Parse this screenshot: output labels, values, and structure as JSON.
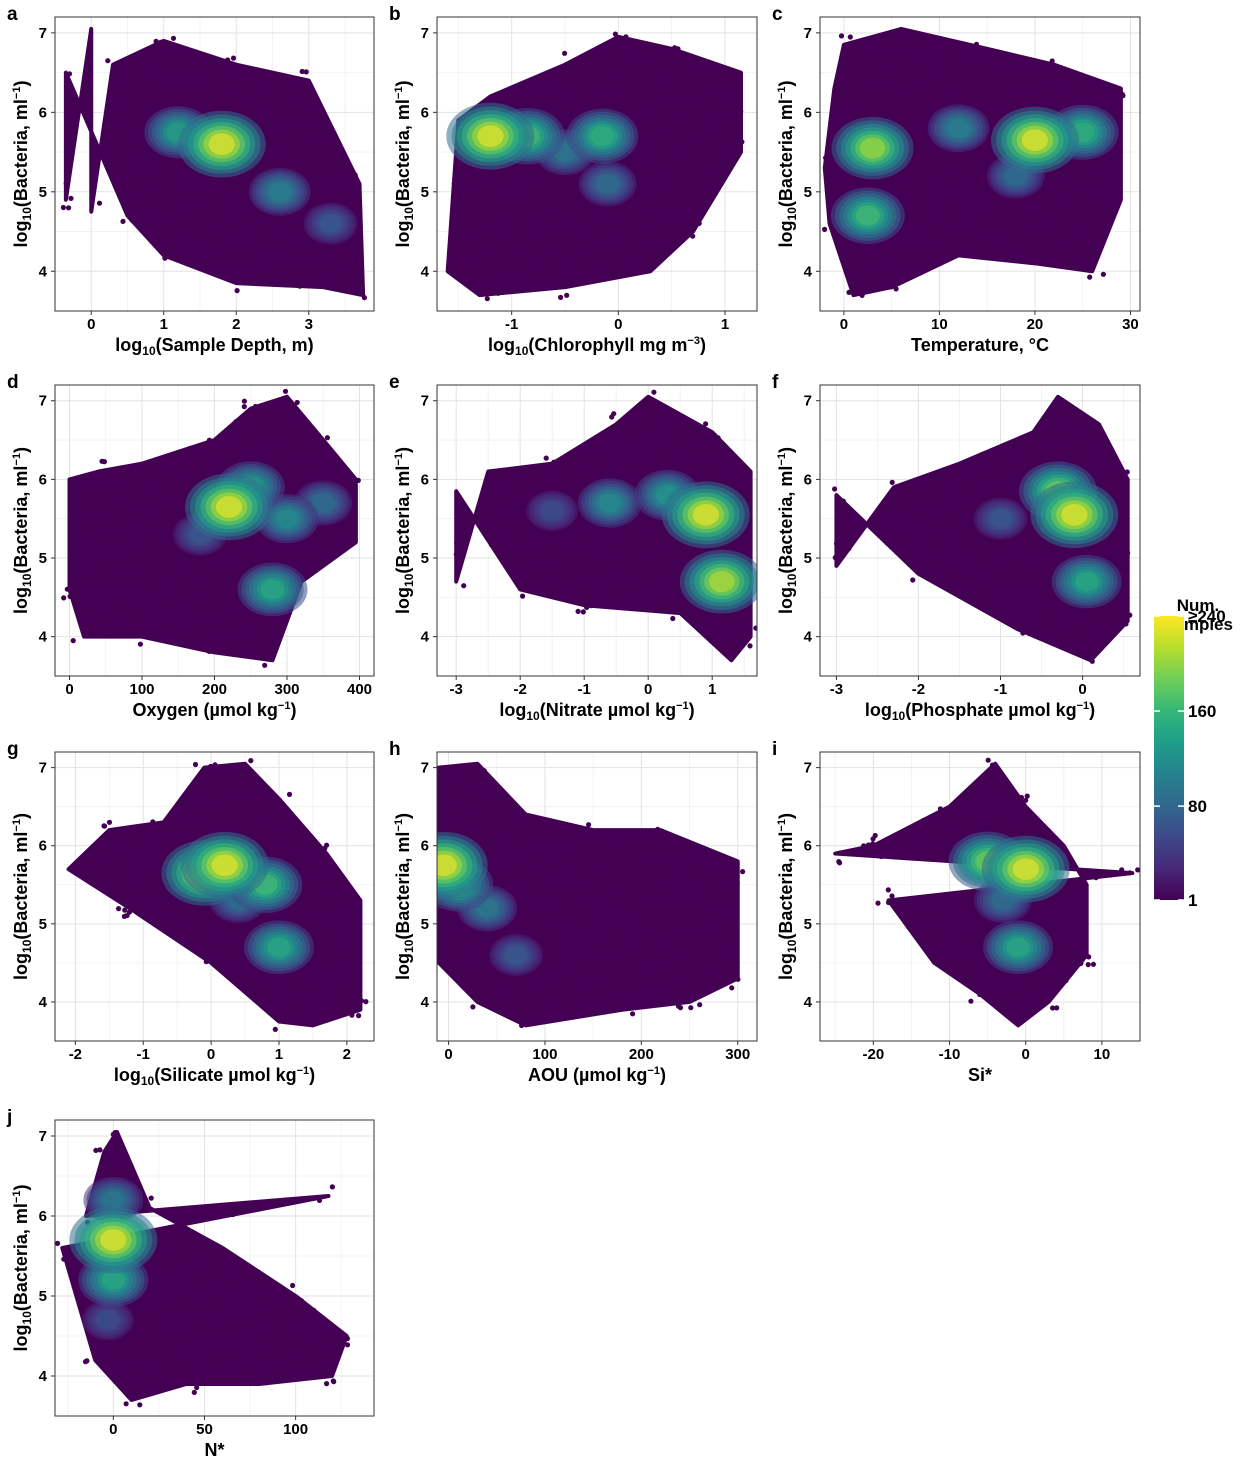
{
  "chart_data": [
    {
      "type": "scatter",
      "panel": "a",
      "title": "",
      "xlabel_prefix": "log",
      "xlabel_sub": "10",
      "xlabel_main": "(Sample Depth, m)",
      "xlabel_sup": "",
      "xlabel_tail": "",
      "ylabel": "log10(Bacteria, ml-1)",
      "xlim": [
        -0.5,
        3.9
      ],
      "ylim": [
        3.5,
        7.2
      ],
      "xticks": [
        0,
        1,
        2,
        3
      ],
      "xtick_labels": [
        "0",
        "1",
        "2",
        "3"
      ],
      "yticks": [
        4,
        5,
        6,
        7
      ],
      "ytick_labels": [
        "4",
        "5",
        "6",
        "7"
      ],
      "density_peaks": [
        {
          "x": 1.8,
          "y": 5.6,
          "level": 240
        },
        {
          "x": 1.2,
          "y": 5.75,
          "level": 140
        },
        {
          "x": 2.6,
          "y": 5.0,
          "level": 110
        },
        {
          "x": 3.3,
          "y": 4.6,
          "level": 70
        }
      ],
      "point_extent": [
        [
          -0.35,
          6.5
        ],
        [
          -0.35,
          4.9
        ],
        [
          0,
          7.05
        ],
        [
          0,
          4.75
        ],
        [
          0.3,
          6.6
        ],
        [
          1.0,
          6.9
        ],
        [
          2.0,
          6.6
        ],
        [
          3.0,
          6.4
        ],
        [
          3.7,
          5.1
        ],
        [
          3.75,
          3.7
        ],
        [
          3.2,
          3.8
        ],
        [
          2.0,
          3.85
        ],
        [
          1.0,
          4.2
        ],
        [
          0.5,
          4.7
        ]
      ]
    },
    {
      "type": "scatter",
      "panel": "b",
      "title": "",
      "xlabel_prefix": "log",
      "xlabel_sub": "10",
      "xlabel_main": "(Chlorophyll mg m",
      "xlabel_sup": "−3",
      "xlabel_tail": ")",
      "ylabel": "log10(Bacteria, ml-1)",
      "xlim": [
        -1.7,
        1.3
      ],
      "ylim": [
        3.5,
        7.2
      ],
      "xticks": [
        -1,
        0,
        1
      ],
      "xtick_labels": [
        "-1",
        "0",
        "1"
      ],
      "yticks": [
        4,
        5,
        6,
        7
      ],
      "ytick_labels": [
        "4",
        "5",
        "6",
        "7"
      ],
      "density_peaks": [
        {
          "x": -1.2,
          "y": 5.7,
          "level": 240
        },
        {
          "x": -0.85,
          "y": 5.7,
          "level": 170
        },
        {
          "x": -0.15,
          "y": 5.7,
          "level": 160
        },
        {
          "x": -0.5,
          "y": 5.5,
          "level": 100
        },
        {
          "x": -0.1,
          "y": 5.1,
          "level": 90
        }
      ],
      "point_extent": [
        [
          -1.6,
          4.0
        ],
        [
          -1.5,
          5.9
        ],
        [
          -1.2,
          6.2
        ],
        [
          -0.5,
          6.6
        ],
        [
          0,
          6.95
        ],
        [
          0.5,
          6.8
        ],
        [
          1.15,
          6.5
        ],
        [
          1.15,
          5.5
        ],
        [
          0.7,
          4.5
        ],
        [
          0.3,
          4.0
        ],
        [
          -0.5,
          3.8
        ],
        [
          -1.3,
          3.7
        ]
      ]
    },
    {
      "type": "scatter",
      "panel": "c",
      "title": "",
      "xlabel_prefix": "",
      "xlabel_sub": "",
      "xlabel_main": "Temperature, °C",
      "xlabel_sup": "",
      "xlabel_tail": "",
      "ylabel": "log10(Bacteria, ml-1)",
      "xlim": [
        -2.5,
        31
      ],
      "ylim": [
        3.5,
        7.2
      ],
      "xticks": [
        0,
        10,
        20,
        30
      ],
      "xtick_labels": [
        "0",
        "10",
        "20",
        "30"
      ],
      "yticks": [
        4,
        5,
        6,
        7
      ],
      "ytick_labels": [
        "4",
        "5",
        "6",
        "7"
      ],
      "density_peaks": [
        {
          "x": 20,
          "y": 5.65,
          "level": 240
        },
        {
          "x": 3,
          "y": 5.55,
          "level": 210
        },
        {
          "x": 2.5,
          "y": 4.7,
          "level": 170
        },
        {
          "x": 25,
          "y": 5.75,
          "level": 160
        },
        {
          "x": 12,
          "y": 5.8,
          "level": 110
        },
        {
          "x": 18,
          "y": 5.2,
          "level": 90
        }
      ],
      "point_extent": [
        [
          -2,
          5.3
        ],
        [
          -1,
          6.3
        ],
        [
          0,
          6.85
        ],
        [
          6,
          7.05
        ],
        [
          15,
          6.8
        ],
        [
          22,
          6.6
        ],
        [
          29,
          6.3
        ],
        [
          29,
          4.9
        ],
        [
          26,
          4.0
        ],
        [
          20,
          4.1
        ],
        [
          12,
          4.2
        ],
        [
          5,
          3.8
        ],
        [
          1,
          3.7
        ],
        [
          -1.5,
          4.6
        ]
      ]
    },
    {
      "type": "scatter",
      "panel": "d",
      "title": "",
      "xlabel_prefix": "",
      "xlabel_sub": "",
      "xlabel_main": "Oxygen (µmol kg",
      "xlabel_sup": "−1",
      "xlabel_tail": ")",
      "ylabel": "log10(Bacteria, ml-1)",
      "xlim": [
        -20,
        420
      ],
      "ylim": [
        3.5,
        7.2
      ],
      "xticks": [
        0,
        100,
        200,
        300,
        400
      ],
      "xtick_labels": [
        "0",
        "100",
        "200",
        "300",
        "400"
      ],
      "yticks": [
        4,
        5,
        6,
        7
      ],
      "ytick_labels": [
        "4",
        "5",
        "6",
        "7"
      ],
      "density_peaks": [
        {
          "x": 220,
          "y": 5.65,
          "level": 240
        },
        {
          "x": 280,
          "y": 4.6,
          "level": 150
        },
        {
          "x": 250,
          "y": 5.9,
          "level": 140
        },
        {
          "x": 300,
          "y": 5.5,
          "level": 120
        },
        {
          "x": 350,
          "y": 5.7,
          "level": 90
        },
        {
          "x": 180,
          "y": 5.3,
          "level": 70
        }
      ],
      "point_extent": [
        [
          0,
          6.0
        ],
        [
          40,
          6.1
        ],
        [
          100,
          6.2
        ],
        [
          200,
          6.5
        ],
        [
          250,
          6.9
        ],
        [
          300,
          7.05
        ],
        [
          350,
          6.5
        ],
        [
          395,
          6.0
        ],
        [
          395,
          5.2
        ],
        [
          320,
          4.7
        ],
        [
          280,
          3.7
        ],
        [
          200,
          3.8
        ],
        [
          100,
          4.0
        ],
        [
          20,
          4.0
        ],
        [
          0,
          4.6
        ]
      ]
    },
    {
      "type": "scatter",
      "panel": "e",
      "title": "",
      "xlabel_prefix": "log",
      "xlabel_sub": "10",
      "xlabel_main": "(Nitrate µmol kg",
      "xlabel_sup": "−1",
      "xlabel_tail": ")",
      "ylabel": "log10(Bacteria, ml-1)",
      "xlim": [
        -3.3,
        1.7
      ],
      "ylim": [
        3.5,
        7.2
      ],
      "xticks": [
        -3,
        -2,
        -1,
        0,
        1
      ],
      "xtick_labels": [
        "-3",
        "-2",
        "-1",
        "0",
        "1"
      ],
      "yticks": [
        4,
        5,
        6,
        7
      ],
      "ytick_labels": [
        "4",
        "5",
        "6",
        "7"
      ],
      "density_peaks": [
        {
          "x": 0.9,
          "y": 5.55,
          "level": 240
        },
        {
          "x": 1.15,
          "y": 4.7,
          "level": 220
        },
        {
          "x": -0.6,
          "y": 5.7,
          "level": 120
        },
        {
          "x": 0.3,
          "y": 5.8,
          "level": 130
        },
        {
          "x": -1.5,
          "y": 5.6,
          "level": 60
        }
      ],
      "point_extent": [
        [
          -3,
          5.85
        ],
        [
          -3,
          4.7
        ],
        [
          -2.5,
          6.1
        ],
        [
          -1.5,
          6.2
        ],
        [
          -0.5,
          6.7
        ],
        [
          0,
          7.05
        ],
        [
          1,
          6.6
        ],
        [
          1.6,
          6.1
        ],
        [
          1.6,
          4.0
        ],
        [
          1.3,
          3.7
        ],
        [
          0.5,
          4.3
        ],
        [
          -1,
          4.4
        ],
        [
          -2,
          4.6
        ]
      ]
    },
    {
      "type": "scatter",
      "panel": "f",
      "title": "",
      "xlabel_prefix": "log",
      "xlabel_sub": "10",
      "xlabel_main": "(Phosphate µmol kg",
      "xlabel_sup": "−1",
      "xlabel_tail": ")",
      "ylabel": "log10(Bacteria, ml-1)",
      "xlim": [
        -3.2,
        0.7
      ],
      "ylim": [
        3.5,
        7.2
      ],
      "xticks": [
        -3,
        -2,
        -1,
        0
      ],
      "xtick_labels": [
        "-3",
        "-2",
        "-1",
        "0"
      ],
      "yticks": [
        4,
        5,
        6,
        7
      ],
      "ytick_labels": [
        "4",
        "5",
        "6",
        "7"
      ],
      "density_peaks": [
        {
          "x": -0.1,
          "y": 5.55,
          "level": 240
        },
        {
          "x": -0.3,
          "y": 5.85,
          "level": 190
        },
        {
          "x": 0.05,
          "y": 4.7,
          "level": 150
        },
        {
          "x": -1.0,
          "y": 5.5,
          "level": 70
        }
      ],
      "point_extent": [
        [
          -3,
          5.8
        ],
        [
          -3,
          4.9
        ],
        [
          -2.3,
          5.9
        ],
        [
          -1.5,
          6.2
        ],
        [
          -0.6,
          6.6
        ],
        [
          -0.3,
          7.05
        ],
        [
          0.2,
          6.7
        ],
        [
          0.55,
          6.0
        ],
        [
          0.55,
          4.2
        ],
        [
          0.1,
          3.7
        ],
        [
          -0.8,
          4.1
        ],
        [
          -2,
          4.8
        ]
      ]
    },
    {
      "type": "scatter",
      "panel": "g",
      "title": "",
      "xlabel_prefix": "log",
      "xlabel_sub": "10",
      "xlabel_main": "(Silicate µmol kg",
      "xlabel_sup": "−1",
      "xlabel_tail": ")",
      "ylabel": "log10(Bacteria, ml-1)",
      "xlim": [
        -2.3,
        2.4
      ],
      "ylim": [
        3.5,
        7.2
      ],
      "xticks": [
        -2,
        -1,
        0,
        1,
        2
      ],
      "xtick_labels": [
        "-2",
        "-1",
        "0",
        "1",
        "2"
      ],
      "yticks": [
        4,
        5,
        6,
        7
      ],
      "ytick_labels": [
        "4",
        "5",
        "6",
        "7"
      ],
      "density_peaks": [
        {
          "x": 0.2,
          "y": 5.75,
          "level": 240
        },
        {
          "x": -0.1,
          "y": 5.65,
          "level": 230
        },
        {
          "x": 0.8,
          "y": 5.5,
          "level": 170
        },
        {
          "x": 1.0,
          "y": 4.7,
          "level": 150
        },
        {
          "x": 0.4,
          "y": 5.3,
          "level": 90
        }
      ],
      "point_extent": [
        [
          -2.1,
          5.7
        ],
        [
          -1.5,
          6.2
        ],
        [
          -0.7,
          6.3
        ],
        [
          -0.1,
          7.0
        ],
        [
          0.5,
          7.05
        ],
        [
          1.0,
          6.6
        ],
        [
          1.7,
          5.9
        ],
        [
          2.2,
          5.3
        ],
        [
          2.2,
          3.9
        ],
        [
          1.5,
          3.7
        ],
        [
          1.0,
          3.75
        ],
        [
          0,
          4.5
        ],
        [
          -1.2,
          5.2
        ]
      ]
    },
    {
      "type": "scatter",
      "panel": "h",
      "title": "",
      "xlabel_prefix": "",
      "xlabel_sub": "",
      "xlabel_main": "AOU (µmol kg",
      "xlabel_sup": "−1",
      "xlabel_tail": ")",
      "ylabel": "log10(Bacteria, ml-1)",
      "xlim": [
        -12,
        320
      ],
      "ylim": [
        3.5,
        7.2
      ],
      "xticks": [
        0,
        100,
        200,
        300
      ],
      "xtick_labels": [
        "0",
        "100",
        "200",
        "300"
      ],
      "yticks": [
        4,
        5,
        6,
        7
      ],
      "ytick_labels": [
        "4",
        "5",
        "6",
        "7"
      ],
      "density_peaks": [
        {
          "x": -5,
          "y": 5.75,
          "level": 240
        },
        {
          "x": 10,
          "y": 5.5,
          "level": 150
        },
        {
          "x": 40,
          "y": 5.2,
          "level": 100
        },
        {
          "x": 70,
          "y": 4.6,
          "level": 70
        }
      ],
      "point_extent": [
        [
          -10,
          7.0
        ],
        [
          30,
          7.05
        ],
        [
          80,
          6.4
        ],
        [
          150,
          6.2
        ],
        [
          220,
          6.2
        ],
        [
          300,
          5.8
        ],
        [
          300,
          4.3
        ],
        [
          250,
          4.0
        ],
        [
          180,
          3.9
        ],
        [
          80,
          3.7
        ],
        [
          30,
          4.0
        ],
        [
          -10,
          4.5
        ]
      ]
    },
    {
      "type": "scatter",
      "panel": "i",
      "title": "",
      "xlabel_prefix": "",
      "xlabel_sub": "",
      "xlabel_main": "Si*",
      "xlabel_sup": "",
      "xlabel_tail": "",
      "ylabel": "log10(Bacteria, ml-1)",
      "xlim": [
        -27,
        15
      ],
      "ylim": [
        3.5,
        7.2
      ],
      "xticks": [
        -20,
        -10,
        0,
        10
      ],
      "xtick_labels": [
        "-20",
        "-10",
        "0",
        "10"
      ],
      "yticks": [
        4,
        5,
        6,
        7
      ],
      "ytick_labels": [
        "4",
        "5",
        "6",
        "7"
      ],
      "density_peaks": [
        {
          "x": 0,
          "y": 5.7,
          "level": 240
        },
        {
          "x": -5,
          "y": 5.8,
          "level": 190
        },
        {
          "x": -1,
          "y": 4.7,
          "level": 150
        },
        {
          "x": -3,
          "y": 5.3,
          "level": 90
        }
      ],
      "point_extent": [
        [
          -25,
          5.9
        ],
        [
          -20,
          6.0
        ],
        [
          -10,
          6.5
        ],
        [
          -4,
          7.05
        ],
        [
          0,
          6.5
        ],
        [
          5,
          6.0
        ],
        [
          8,
          5.5
        ],
        [
          8,
          4.6
        ],
        [
          3,
          4.0
        ],
        [
          -1,
          3.7
        ],
        [
          -6,
          4.1
        ],
        [
          -12,
          4.5
        ],
        [
          -18,
          5.3
        ],
        [
          14,
          5.65
        ]
      ]
    },
    {
      "type": "scatter",
      "panel": "j",
      "title": "",
      "xlabel_prefix": "",
      "xlabel_sub": "",
      "xlabel_main": "N*",
      "xlabel_sup": "",
      "xlabel_tail": "",
      "ylabel": "log10(Bacteria, ml-1)",
      "xlim": [
        -32,
        143
      ],
      "ylim": [
        3.5,
        7.2
      ],
      "xticks": [
        0,
        50,
        100
      ],
      "xtick_labels": [
        "0",
        "50",
        "100"
      ],
      "yticks": [
        4,
        5,
        6,
        7
      ],
      "ytick_labels": [
        "4",
        "5",
        "6",
        "7"
      ],
      "density_peaks": [
        {
          "x": 0,
          "y": 5.7,
          "level": 240
        },
        {
          "x": 0,
          "y": 5.2,
          "level": 150
        },
        {
          "x": 0,
          "y": 6.2,
          "level": 100
        },
        {
          "x": -3,
          "y": 4.7,
          "level": 60
        }
      ],
      "point_extent": [
        [
          -15,
          6.0
        ],
        [
          -5,
          6.8
        ],
        [
          2,
          7.05
        ],
        [
          20,
          6.1
        ],
        [
          60,
          5.6
        ],
        [
          100,
          5.0
        ],
        [
          128,
          4.5
        ],
        [
          120,
          4.0
        ],
        [
          80,
          3.9
        ],
        [
          40,
          3.9
        ],
        [
          10,
          3.7
        ],
        [
          -10,
          4.2
        ],
        [
          -28,
          5.6
        ],
        [
          118,
          6.25
        ]
      ]
    }
  ],
  "y_axis_title": {
    "prefix": "log",
    "sub": "10",
    "main": "(Bacteria, ml",
    "sup": "−1",
    "tail": ")"
  },
  "legend": {
    "title_line1": "Num.",
    "title_line2": "Samples",
    "ticks": [
      {
        "value": 240,
        "label": "≥240"
      },
      {
        "value": 160,
        "label": "160"
      },
      {
        "value": 80,
        "label": "80"
      },
      {
        "value": 1,
        "label": "1"
      }
    ],
    "range": [
      1,
      240
    ],
    "colormap": "viridis",
    "colors": [
      "#440154",
      "#482878",
      "#3e4989",
      "#31688e",
      "#26828e",
      "#1f9e89",
      "#35b779",
      "#6ece58",
      "#b5de2b",
      "#fde725"
    ]
  }
}
